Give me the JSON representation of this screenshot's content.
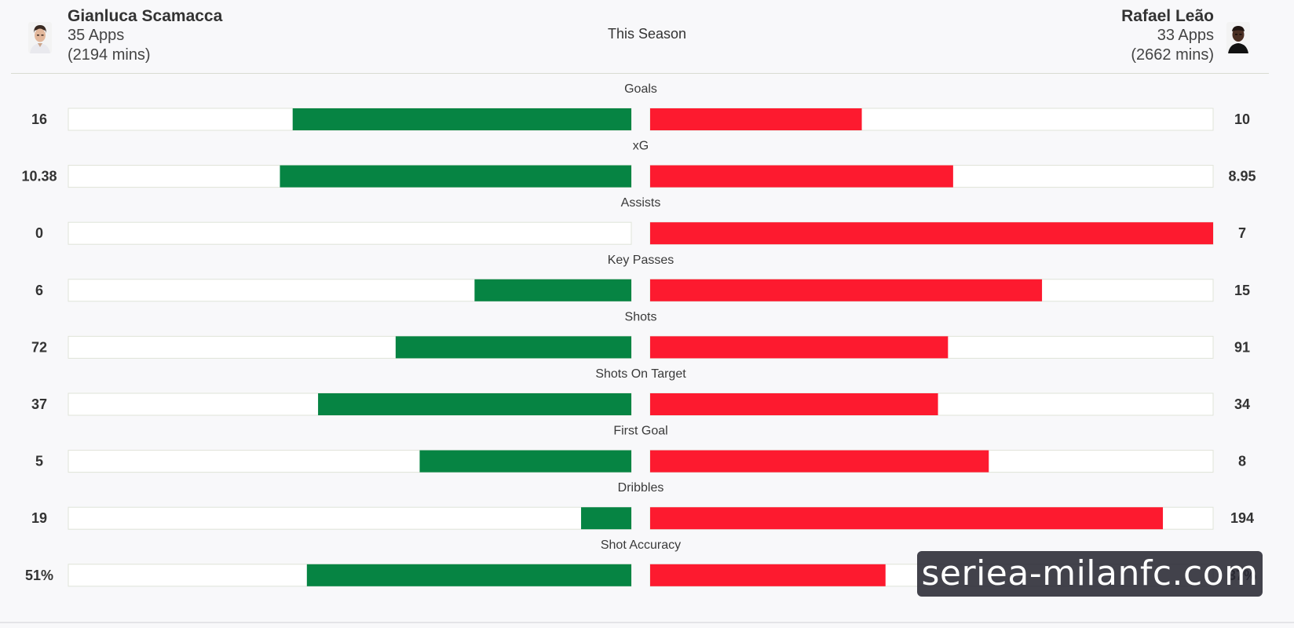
{
  "header": {
    "season_label": "This Season",
    "left_player": {
      "name": "Gianluca Scamacca",
      "apps": "35 Apps",
      "mins": "(2194 mins)"
    },
    "right_player": {
      "name": "Rafael Leão",
      "apps": "33 Apps",
      "mins": "(2662 mins)"
    }
  },
  "colors": {
    "left": "#068443",
    "right": "#fd1a2f",
    "track": "#ffffff",
    "track_border": "#dfe3d8"
  },
  "chart_data": {
    "type": "bar",
    "orientation": "diverging-horizontal",
    "series": [
      {
        "name": "Gianluca Scamacca",
        "color": "#068443"
      },
      {
        "name": "Rafael Leão",
        "color": "#fd1a2f"
      }
    ],
    "rows": [
      {
        "label": "Goals",
        "left_value": 16,
        "right_value": 10,
        "left_display": "16",
        "right_display": "10"
      },
      {
        "label": "xG",
        "left_value": 10.38,
        "right_value": 8.95,
        "left_display": "10.38",
        "right_display": "8.95"
      },
      {
        "label": "Assists",
        "left_value": 0,
        "right_value": 7,
        "left_display": "0",
        "right_display": "7"
      },
      {
        "label": "Key Passes",
        "left_value": 6,
        "right_value": 15,
        "left_display": "6",
        "right_display": "15"
      },
      {
        "label": "Shots",
        "left_value": 72,
        "right_value": 91,
        "left_display": "72",
        "right_display": "91"
      },
      {
        "label": "Shots On Target",
        "left_value": 37,
        "right_value": 34,
        "left_display": "37",
        "right_display": "34"
      },
      {
        "label": "First Goal",
        "left_value": 5,
        "right_value": 8,
        "left_display": "5",
        "right_display": "8"
      },
      {
        "label": "Dribbles",
        "left_value": 19,
        "right_value": 194,
        "left_display": "19",
        "right_display": "194"
      },
      {
        "label": "Shot Accuracy",
        "left_value": 51,
        "right_value": 37,
        "left_display": "51%",
        "right_display": "37%"
      }
    ],
    "row_scale_max": [
      26.6,
      16.63,
      7,
      21.55,
      172,
      66.5,
      13.3,
      213,
      88.5
    ]
  },
  "watermark": {
    "text": "seriea-milanfc.com"
  }
}
